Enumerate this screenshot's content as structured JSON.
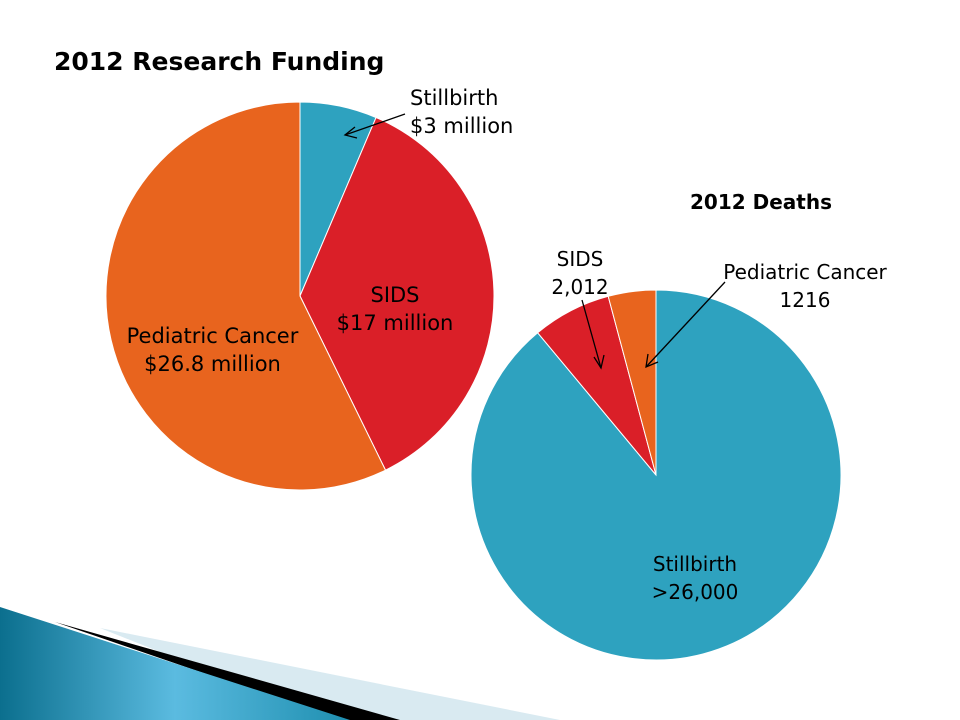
{
  "chart_data": [
    {
      "type": "pie",
      "title": "2012 Research Funding",
      "unit": "$ million",
      "slices": [
        {
          "label": "Stillbirth",
          "value": 3,
          "display": "$3 million",
          "color": "#2EA2BF"
        },
        {
          "label": "SIDS",
          "value": 17,
          "display": "$17 million",
          "color": "#DA1F28"
        },
        {
          "label": "Pediatric Cancer",
          "value": 26.8,
          "display": "$26.8 million",
          "color": "#E8641E"
        }
      ]
    },
    {
      "type": "pie",
      "title": "2012 Deaths",
      "slices": [
        {
          "label": "Stillbirth",
          "value": 26000,
          "display": ">26,000",
          "color": "#2EA2BF"
        },
        {
          "label": "SIDS",
          "value": 2012,
          "display": "2,012",
          "color": "#DA1F28"
        },
        {
          "label": "Pediatric Cancer",
          "value": 1216,
          "display": "1216",
          "color": "#E8641E"
        }
      ]
    }
  ]
}
